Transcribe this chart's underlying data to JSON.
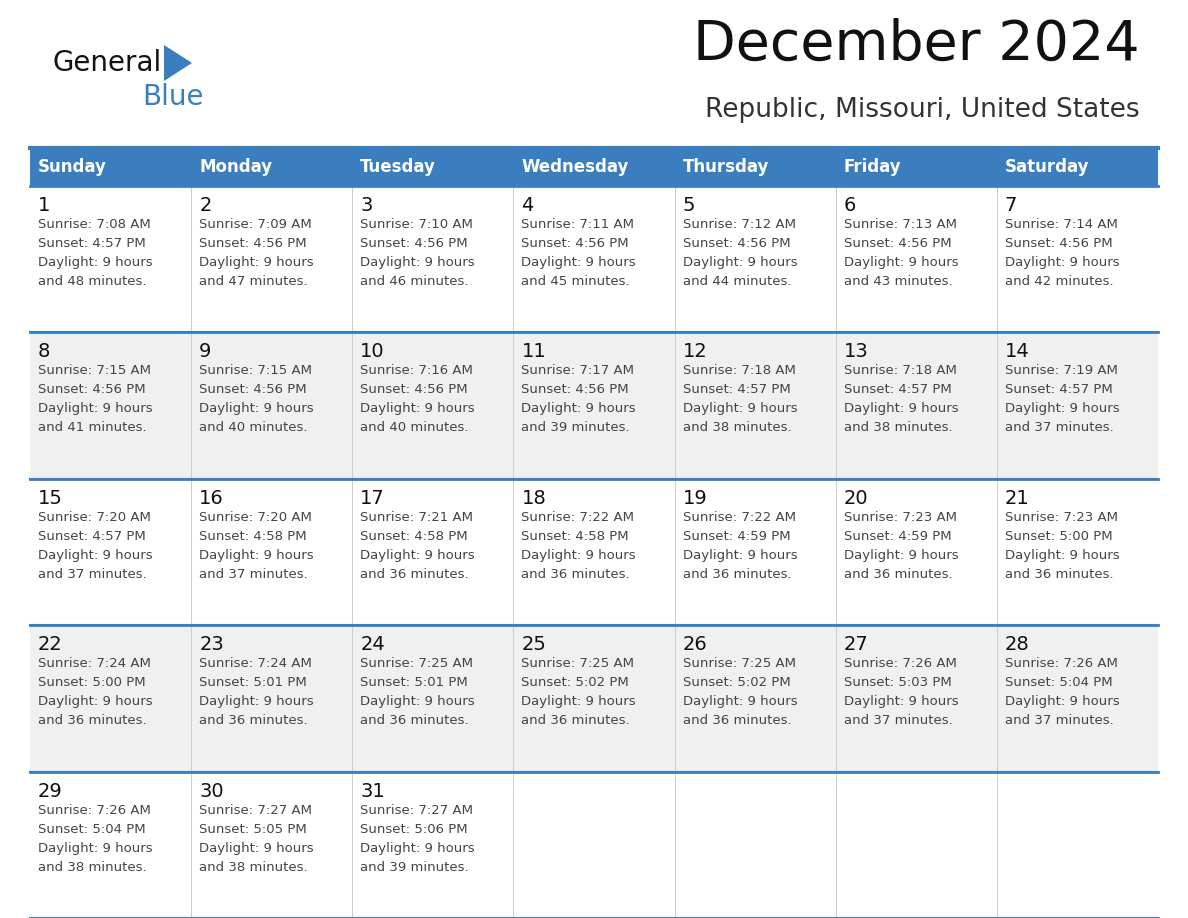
{
  "title": "December 2024",
  "subtitle": "Republic, Missouri, United States",
  "days_of_week": [
    "Sunday",
    "Monday",
    "Tuesday",
    "Wednesday",
    "Thursday",
    "Friday",
    "Saturday"
  ],
  "header_bg": "#3a7ebf",
  "header_text": "#FFFFFF",
  "cell_bg_white": "#FFFFFF",
  "cell_bg_gray": "#f0f0f0",
  "grid_line_color": "#3a7ebf",
  "day_num_color": "#111111",
  "cell_text_color": "#444444",
  "title_color": "#111111",
  "subtitle_color": "#333333",
  "logo_general_color": "#111111",
  "logo_blue_color": "#3a7ebf",
  "logo_triangle_color": "#3a7ebf",
  "calendar_data": [
    [
      {
        "day": 1,
        "sunrise": "7:08 AM",
        "sunset": "4:57 PM",
        "minutes": "48"
      },
      {
        "day": 2,
        "sunrise": "7:09 AM",
        "sunset": "4:56 PM",
        "minutes": "47"
      },
      {
        "day": 3,
        "sunrise": "7:10 AM",
        "sunset": "4:56 PM",
        "minutes": "46"
      },
      {
        "day": 4,
        "sunrise": "7:11 AM",
        "sunset": "4:56 PM",
        "minutes": "45"
      },
      {
        "day": 5,
        "sunrise": "7:12 AM",
        "sunset": "4:56 PM",
        "minutes": "44"
      },
      {
        "day": 6,
        "sunrise": "7:13 AM",
        "sunset": "4:56 PM",
        "minutes": "43"
      },
      {
        "day": 7,
        "sunrise": "7:14 AM",
        "sunset": "4:56 PM",
        "minutes": "42"
      }
    ],
    [
      {
        "day": 8,
        "sunrise": "7:15 AM",
        "sunset": "4:56 PM",
        "minutes": "41"
      },
      {
        "day": 9,
        "sunrise": "7:15 AM",
        "sunset": "4:56 PM",
        "minutes": "40"
      },
      {
        "day": 10,
        "sunrise": "7:16 AM",
        "sunset": "4:56 PM",
        "minutes": "40"
      },
      {
        "day": 11,
        "sunrise": "7:17 AM",
        "sunset": "4:56 PM",
        "minutes": "39"
      },
      {
        "day": 12,
        "sunrise": "7:18 AM",
        "sunset": "4:57 PM",
        "minutes": "38"
      },
      {
        "day": 13,
        "sunrise": "7:18 AM",
        "sunset": "4:57 PM",
        "minutes": "38"
      },
      {
        "day": 14,
        "sunrise": "7:19 AM",
        "sunset": "4:57 PM",
        "minutes": "37"
      }
    ],
    [
      {
        "day": 15,
        "sunrise": "7:20 AM",
        "sunset": "4:57 PM",
        "minutes": "37"
      },
      {
        "day": 16,
        "sunrise": "7:20 AM",
        "sunset": "4:58 PM",
        "minutes": "37"
      },
      {
        "day": 17,
        "sunrise": "7:21 AM",
        "sunset": "4:58 PM",
        "minutes": "36"
      },
      {
        "day": 18,
        "sunrise": "7:22 AM",
        "sunset": "4:58 PM",
        "minutes": "36"
      },
      {
        "day": 19,
        "sunrise": "7:22 AM",
        "sunset": "4:59 PM",
        "minutes": "36"
      },
      {
        "day": 20,
        "sunrise": "7:23 AM",
        "sunset": "4:59 PM",
        "minutes": "36"
      },
      {
        "day": 21,
        "sunrise": "7:23 AM",
        "sunset": "5:00 PM",
        "minutes": "36"
      }
    ],
    [
      {
        "day": 22,
        "sunrise": "7:24 AM",
        "sunset": "5:00 PM",
        "minutes": "36"
      },
      {
        "day": 23,
        "sunrise": "7:24 AM",
        "sunset": "5:01 PM",
        "minutes": "36"
      },
      {
        "day": 24,
        "sunrise": "7:25 AM",
        "sunset": "5:01 PM",
        "minutes": "36"
      },
      {
        "day": 25,
        "sunrise": "7:25 AM",
        "sunset": "5:02 PM",
        "minutes": "36"
      },
      {
        "day": 26,
        "sunrise": "7:25 AM",
        "sunset": "5:02 PM",
        "minutes": "36"
      },
      {
        "day": 27,
        "sunrise": "7:26 AM",
        "sunset": "5:03 PM",
        "minutes": "37"
      },
      {
        "day": 28,
        "sunrise": "7:26 AM",
        "sunset": "5:04 PM",
        "minutes": "37"
      }
    ],
    [
      {
        "day": 29,
        "sunrise": "7:26 AM",
        "sunset": "5:04 PM",
        "minutes": "38"
      },
      {
        "day": 30,
        "sunrise": "7:27 AM",
        "sunset": "5:05 PM",
        "minutes": "38"
      },
      {
        "day": 31,
        "sunrise": "7:27 AM",
        "sunset": "5:06 PM",
        "minutes": "39"
      },
      null,
      null,
      null,
      null
    ]
  ]
}
